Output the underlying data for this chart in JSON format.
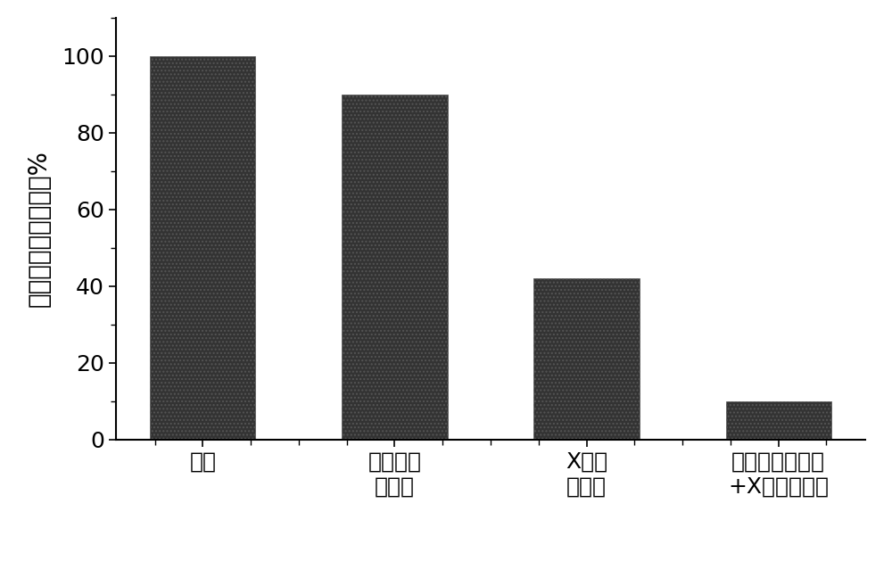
{
  "categories": [
    "对照",
    "杂多酸纳\n米药物",
    "X光放\n射治疗",
    "杂多酸纳米药物\n+X光放射治疗"
  ],
  "values": [
    100,
    90,
    42,
    10
  ],
  "bar_color": "#333333",
  "hatch_color": "#aaaaaa",
  "ylabel": "治疗后肿瘾体积变化%",
  "ylim": [
    0,
    110
  ],
  "yticks": [
    0,
    20,
    40,
    60,
    80,
    100
  ],
  "bar_width": 0.55,
  "figsize": [
    10.0,
    6.57
  ],
  "dpi": 100,
  "background_color": "#ffffff",
  "tick_fontsize": 18,
  "ylabel_fontsize": 20
}
